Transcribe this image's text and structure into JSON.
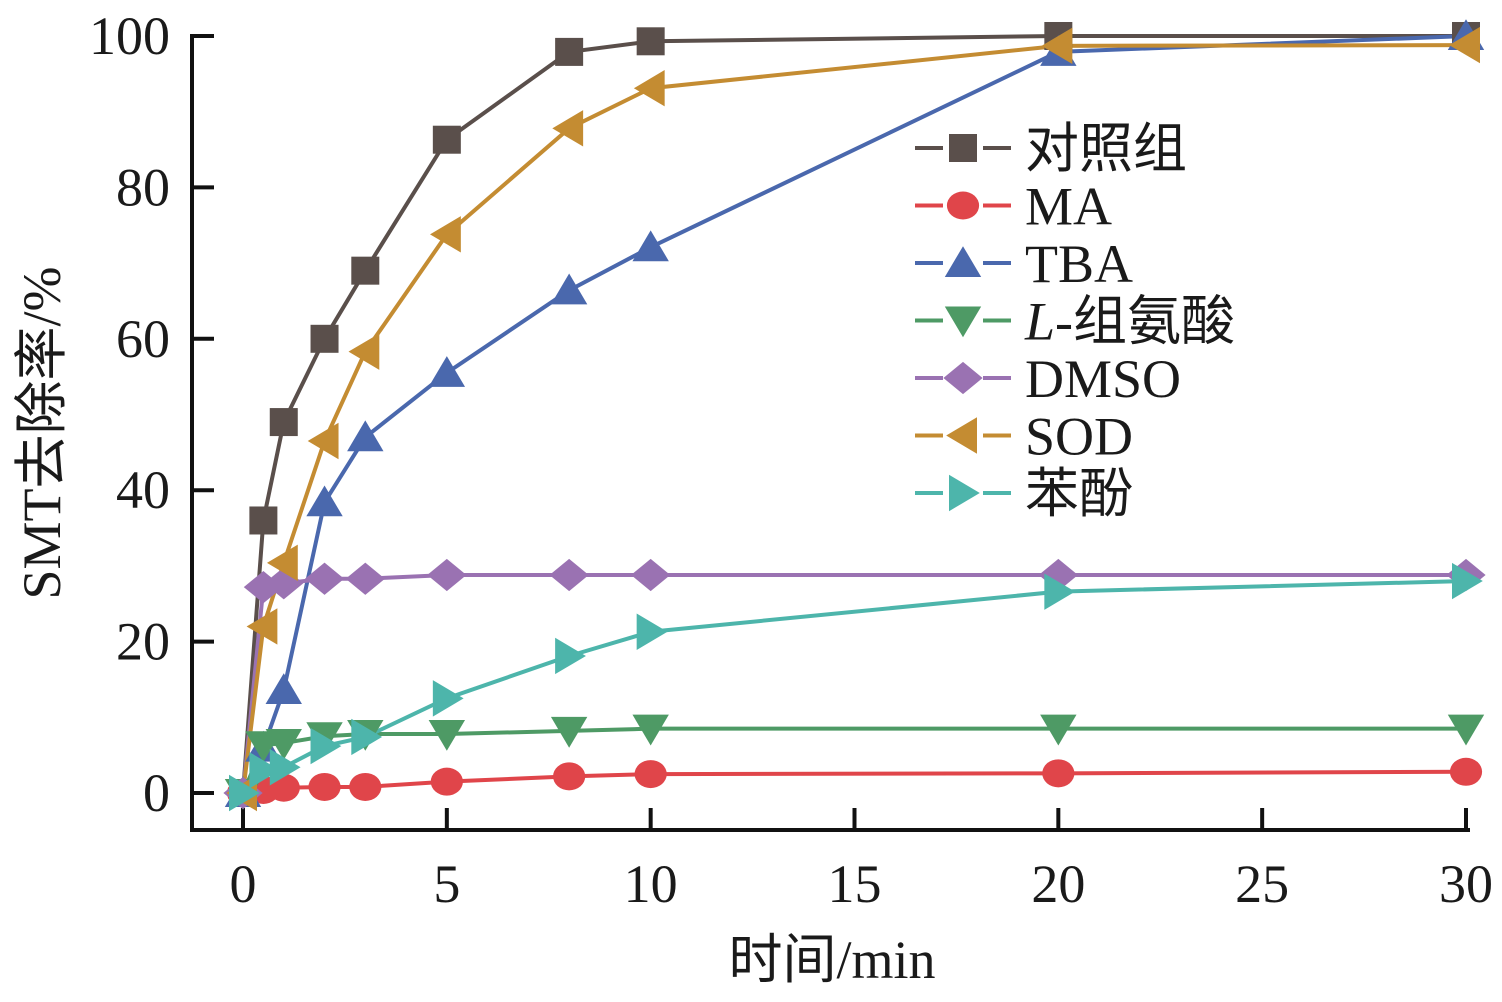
{
  "chart_data": {
    "type": "line",
    "title": "",
    "xlabel": "时间/min",
    "ylabel": "SMT去除率/%",
    "xlim": [
      -1.2,
      30.8
    ],
    "ylim": [
      0,
      100
    ],
    "xticks": [
      0,
      5,
      10,
      15,
      20,
      25,
      30
    ],
    "yticks": [
      0,
      20,
      40,
      60,
      80,
      100
    ],
    "xtick_labels": [
      "0",
      "5",
      "10",
      "15",
      "20",
      "25",
      "30"
    ],
    "ytick_labels": [
      "0",
      "20",
      "40",
      "60",
      "80",
      "100"
    ],
    "grid": false,
    "legend_position": "top-right",
    "x": [
      0,
      0.5,
      1,
      2,
      3,
      5,
      8,
      10,
      20,
      30
    ],
    "series": [
      {
        "name": "对照组",
        "marker": "square",
        "color": "#5a4f4b",
        "values": [
          0,
          36.0,
          49.0,
          60.0,
          69.0,
          86.3,
          97.9,
          99.3,
          100.0,
          100.0
        ]
      },
      {
        "name": "MA",
        "marker": "circle",
        "color": "#e0454a",
        "values": [
          0,
          0.4,
          0.7,
          0.8,
          0.8,
          1.5,
          2.2,
          2.5,
          2.6,
          2.8
        ]
      },
      {
        "name": "TBA",
        "marker": "triangle-up",
        "color": "#4a68ad",
        "values": [
          0,
          6.0,
          13.6,
          38.4,
          47.0,
          55.5,
          66.4,
          72.1,
          97.9,
          100.0
        ]
      },
      {
        "name": "L-组氨酸",
        "marker": "triangle-down",
        "color": "#4e9a65",
        "values": [
          0,
          6.3,
          6.6,
          7.5,
          7.8,
          7.8,
          8.2,
          8.5,
          8.5,
          8.5
        ]
      },
      {
        "name": "DMSO",
        "marker": "diamond",
        "color": "#9a72b2",
        "values": [
          0,
          27.2,
          27.7,
          28.3,
          28.3,
          28.8,
          28.8,
          28.8,
          28.8,
          28.8
        ]
      },
      {
        "name": "SOD",
        "marker": "triangle-left",
        "color": "#c48c32",
        "values": [
          0,
          22.0,
          30.4,
          46.5,
          58.3,
          73.8,
          87.8,
          93.1,
          98.7,
          98.8
        ]
      },
      {
        "name": "苯酚",
        "marker": "triangle-right",
        "color": "#4db5ab",
        "values": [
          0,
          3.0,
          3.4,
          6.2,
          7.4,
          12.5,
          18.1,
          21.3,
          26.6,
          28.0
        ]
      }
    ],
    "legend": {
      "entries": [
        {
          "label_prefix_italic": "",
          "label": "对照组"
        },
        {
          "label_prefix_italic": "",
          "label": "MA"
        },
        {
          "label_prefix_italic": "",
          "label": "TBA"
        },
        {
          "label_prefix_italic": "L",
          "label": "-组氨酸"
        },
        {
          "label_prefix_italic": "",
          "label": "DMSO"
        },
        {
          "label_prefix_italic": "",
          "label": "SOD"
        },
        {
          "label_prefix_italic": "",
          "label": "苯酚"
        }
      ]
    }
  }
}
